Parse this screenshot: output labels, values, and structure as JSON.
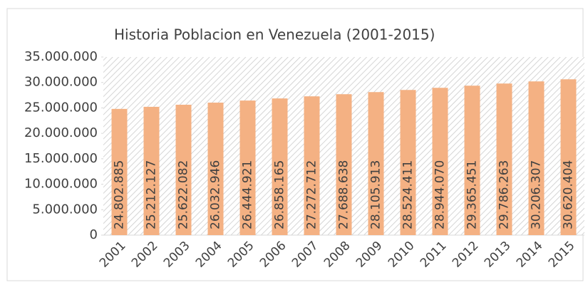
{
  "chart_data": {
    "type": "bar",
    "title": "Historia Poblacion en Venezuela (2001-2015)",
    "categories": [
      "2001",
      "2002",
      "2003",
      "2004",
      "2005",
      "2006",
      "2007",
      "2008",
      "2009",
      "2010",
      "2011",
      "2012",
      "2013",
      "2014",
      "2015"
    ],
    "values": [
      24802885,
      25212127,
      25622082,
      26032946,
      26444921,
      26858165,
      27272712,
      27688638,
      28105913,
      28524411,
      28944070,
      29365451,
      29786263,
      30206307,
      30620404
    ],
    "value_labels": [
      "24.802.885",
      "25.212.127",
      "25.622.082",
      "26.032.946",
      "26.444.921",
      "26.858.165",
      "27.272.712",
      "27.688.638",
      "28.105.913",
      "28.524.411",
      "28.944.070",
      "29.365.451",
      "29.786.263",
      "30.206.307",
      "30.620.404"
    ],
    "color": "#f4b183",
    "ylim": [
      0,
      35000000
    ],
    "yticks": [
      0,
      {
        "value": 5000000,
        "label": "5.000.000"
      },
      {
        "value": 10000000,
        "label": "10.000.000"
      },
      {
        "value": 15000000,
        "label": "15.000.000"
      },
      {
        "value": 20000000,
        "label": "20.000.000"
      },
      {
        "value": 25000000,
        "label": "25.000.000"
      },
      {
        "value": 30000000,
        "label": "30.000.000"
      },
      {
        "value": 35000000,
        "label": "35.000.000"
      }
    ]
  }
}
